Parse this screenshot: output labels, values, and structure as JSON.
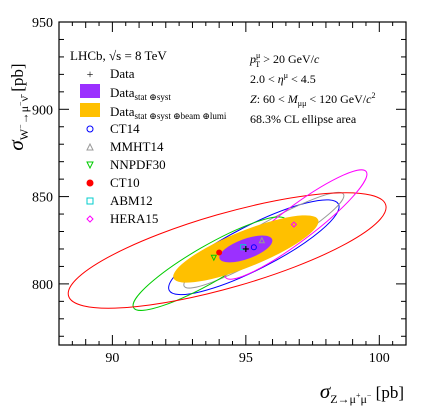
{
  "chart_data": {
    "type": "scatter",
    "experiment": "LHCb, √s = 8 TeV",
    "cuts": [
      "p_T^μ > 20 GeV/c",
      "2.0 < η^μ < 4.5",
      "Z: 60 < M_μμ < 120 GeV/c²",
      "68.3% CL ellipse area"
    ],
    "xlabel": "σ_{Z→μ+μ−} [pb]",
    "ylabel": "σ_{W−→μ−ν̄} [pb]",
    "xlim": [
      88,
      101
    ],
    "ylim": [
      765,
      950
    ],
    "xticks": [
      90,
      95,
      100
    ],
    "yticks": [
      800,
      850,
      900,
      950
    ],
    "data_point": {
      "name": "Data",
      "x": 95.0,
      "y": 820.0,
      "color": "#000000"
    },
    "data_bands": [
      {
        "name": "Data stat ⊕ syst",
        "color": "#9b30ff",
        "cx": 95.0,
        "cy": 820.0,
        "rx": 1.05,
        "ry": 7.5,
        "angle_deg": 0
      },
      {
        "name": "Data stat ⊕ syst ⊕ beam ⊕ lumi",
        "color": "#ffc000",
        "cx": 95.0,
        "cy": 820.0,
        "rx": 2.9,
        "ry": 20.0,
        "angle_deg": 0
      }
    ],
    "series": [
      {
        "name": "CT14",
        "color": "#0000ff",
        "marker": "circle",
        "x": 95.3,
        "y": 821.0
      },
      {
        "name": "MMHT14",
        "color": "#999999",
        "marker": "triangle-up",
        "x": 95.6,
        "y": 825.0
      },
      {
        "name": "NNPDF30",
        "color": "#00cc00",
        "marker": "triangle-down",
        "x": 93.8,
        "y": 815.0
      },
      {
        "name": "CT10",
        "color": "#ff0000",
        "marker": "circle-filled",
        "x": 94.0,
        "y": 818.0
      },
      {
        "name": "ABM12",
        "color": "#00cccc",
        "marker": "square",
        "x": 94.9,
        "y": 821.0
      },
      {
        "name": "HERA15",
        "color": "#ff00ff",
        "marker": "diamond",
        "x": 96.8,
        "y": 834.0
      }
    ]
  }
}
